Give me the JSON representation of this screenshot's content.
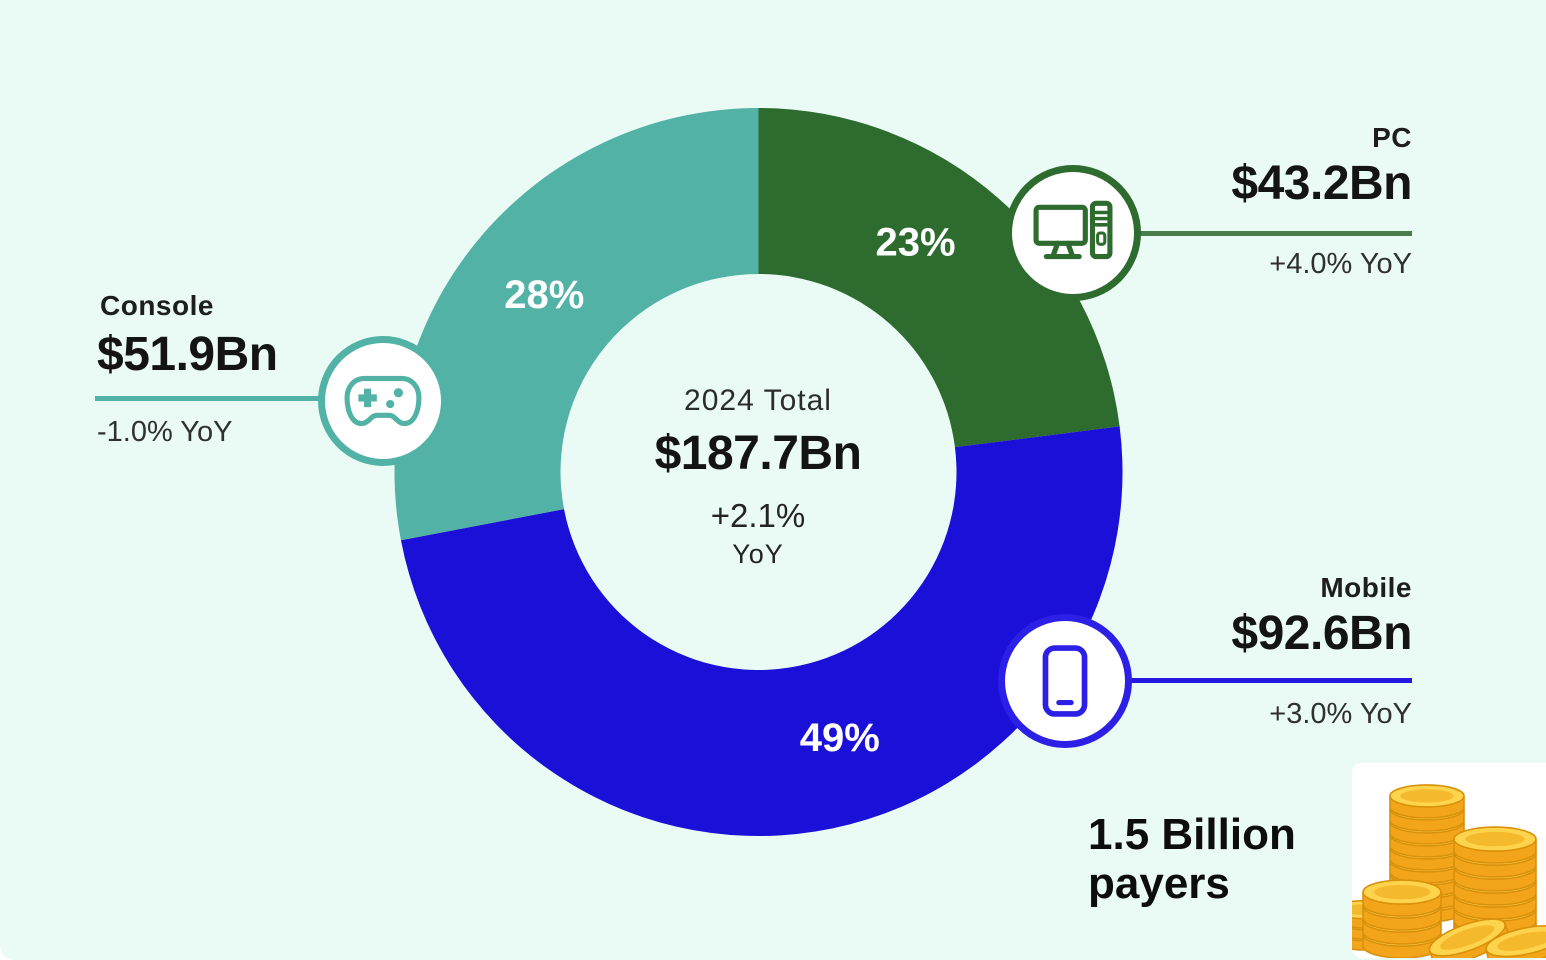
{
  "colors": {
    "background": "#eafaf4",
    "pc_green": "#2e6b2f",
    "mobile_blue": "#1b10d8",
    "console_teal": "#52b2a6",
    "pc_line": "#4a7d4b",
    "mobile_line": "#2417e2",
    "text_dark": "#141414",
    "segment_label_white": "#ffffff",
    "coin_gold": "#ffd44d"
  },
  "chart_data": {
    "type": "pie",
    "subtype": "donut",
    "center": {
      "label": "2024 Total",
      "value": "$187.7Bn",
      "yoy": "+2.1%",
      "yoy_suffix": "YoY"
    },
    "start_position": "12-o-clock, clockwise",
    "segments": [
      {
        "name": "PC",
        "share_pct": 23,
        "label": "23%",
        "value": "$43.2Bn",
        "yoy": "+4.0% YoY",
        "color": "#2e6b2f"
      },
      {
        "name": "Mobile",
        "share_pct": 49,
        "label": "49%",
        "value": "$92.6Bn",
        "yoy": "+3.0% YoY",
        "color": "#1b10d8"
      },
      {
        "name": "Console",
        "share_pct": 28,
        "label": "28%",
        "value": "$51.9Bn",
        "yoy": "-1.0% YoY",
        "color": "#52b2a6"
      }
    ]
  },
  "callouts": {
    "console": {
      "name": "Console",
      "value": "$51.9Bn",
      "yoy": "-1.0% YoY",
      "icon": "gamepad-icon"
    },
    "pc": {
      "name": "PC",
      "value": "$43.2Bn",
      "yoy": "+4.0% YoY",
      "icon": "desktop-computer-icon"
    },
    "mobile": {
      "name": "Mobile",
      "value": "$92.6Bn",
      "yoy": "+3.0% YoY",
      "icon": "smartphone-icon"
    }
  },
  "note": {
    "text": "1.5 Billion payers"
  },
  "illustration": "gold-coins-stack"
}
